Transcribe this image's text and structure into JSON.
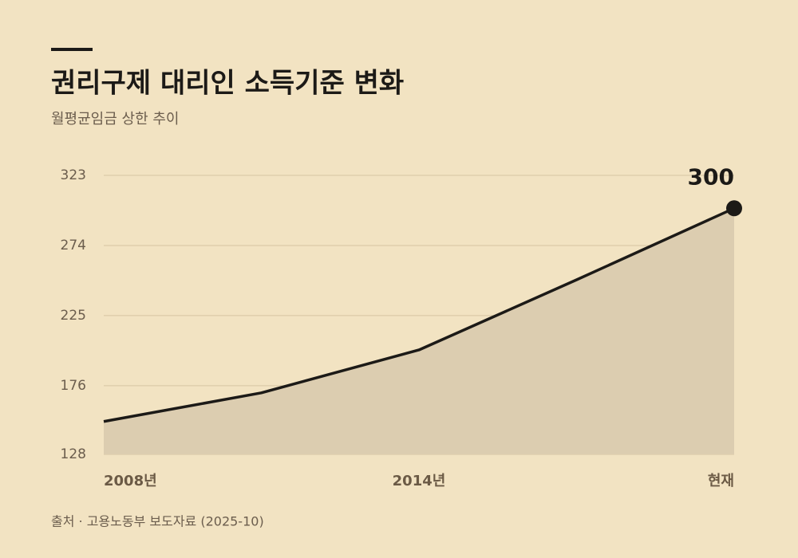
{
  "chart_data": {
    "type": "area",
    "title": "권리구제 대리인 소득기준 변화",
    "subtitle": "월평균임금 상한 추이",
    "source": "출처 · 고용노동부 보도자료 (2025-10)",
    "categories": [
      "2008년",
      null,
      "2014년",
      null,
      "현재"
    ],
    "values": [
      151,
      171,
      201,
      250,
      300
    ],
    "value_labels": [
      null,
      null,
      null,
      null,
      "300"
    ],
    "color": "#1c1a17",
    "fill": "#dccdb0",
    "ylim": [
      128,
      323
    ],
    "yticks": [
      128,
      176,
      225,
      274,
      323
    ],
    "grid": true
  }
}
